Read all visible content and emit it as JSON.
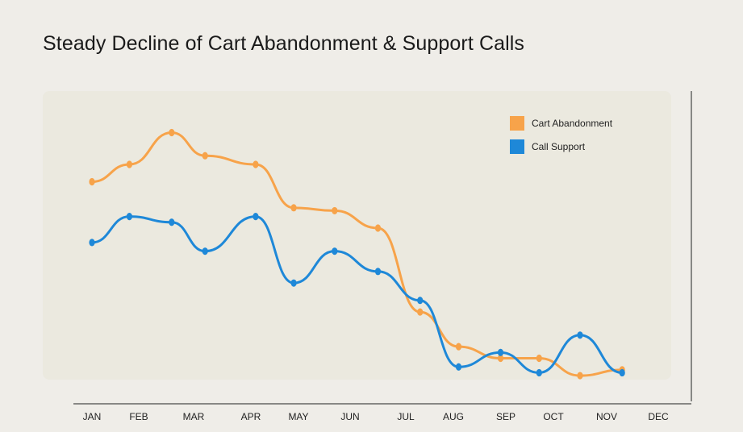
{
  "chart_data": {
    "type": "line",
    "title": "Steady Decline of Cart Abandonment & Support Calls",
    "xlabel": "",
    "ylabel": "",
    "categories": [
      "JAN",
      "FEB",
      "MAR",
      "APR",
      "MAY",
      "JUN",
      "JUL",
      "AUG",
      "SEP",
      "OCT",
      "NOV",
      "DEC"
    ],
    "ylim": [
      0,
      100
    ],
    "grid": false,
    "legend_position": "top-right",
    "series": [
      {
        "name": "Cart Abandonment",
        "color": "#f7a34a",
        "x": [
          0,
          0.8,
          1.6,
          2.2,
          3.1,
          3.9,
          4.7,
          5.5,
          6.3,
          7.1,
          7.9,
          8.7,
          9.5,
          10.3
        ],
        "values": [
          72,
          78,
          89,
          81,
          78,
          63,
          62,
          56,
          27,
          15,
          11,
          11,
          5,
          7
        ]
      },
      {
        "name": "Call Support",
        "color": "#1e88d8",
        "x": [
          0,
          0.8,
          1.6,
          2.2,
          3.1,
          3.9,
          4.7,
          5.5,
          6.3,
          7.1,
          7.9,
          8.7,
          9.5,
          10.3
        ],
        "values": [
          51,
          60,
          58,
          48,
          60,
          37,
          48,
          41,
          31,
          8,
          13,
          6,
          19,
          6
        ]
      }
    ]
  }
}
